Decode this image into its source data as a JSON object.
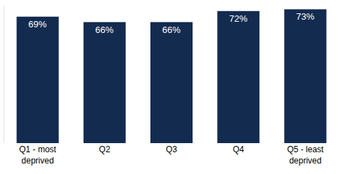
{
  "chart_data": {
    "type": "bar",
    "categories": [
      "Q1 - most deprived",
      "Q2",
      "Q3",
      "Q4",
      "Q5 - least deprived"
    ],
    "values": [
      69,
      66,
      66,
      72,
      73
    ],
    "value_labels": [
      "69%",
      "66%",
      "66%",
      "72%",
      "73%"
    ],
    "color": "#132b4f",
    "ylim": [
      0,
      75
    ],
    "yticks": [],
    "grid": false,
    "data_labels": true,
    "tick_labels": "x"
  }
}
